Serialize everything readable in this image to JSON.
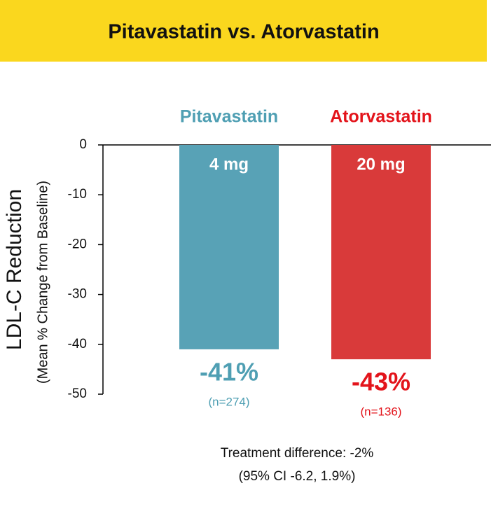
{
  "chart_data": {
    "type": "bar",
    "title": "Pitavastatin vs. Atorvastatin",
    "ylabel": "LDL-C  Reduction",
    "ylabel_sub": "(Mean % Change from Baseline)",
    "categories": [
      "Pitavastatin",
      "Atorvastatin"
    ],
    "values": [
      -41,
      -43
    ],
    "value_labels": [
      "-41%",
      "-43%"
    ],
    "doses": [
      "4 mg",
      "20 mg"
    ],
    "n_labels": [
      "(n=274)",
      "(n=136)"
    ],
    "colors": [
      "#58a2b6",
      "#d93a3a"
    ],
    "label_colors": [
      "#4f9fb3",
      "#e3141b"
    ],
    "ylim": [
      -50,
      0
    ],
    "yticks": [
      0,
      -10,
      -20,
      -30,
      -40,
      -50
    ],
    "annotations": [
      "Treatment difference: -2%",
      "(95% CI -6.2, 1.9%)"
    ]
  }
}
